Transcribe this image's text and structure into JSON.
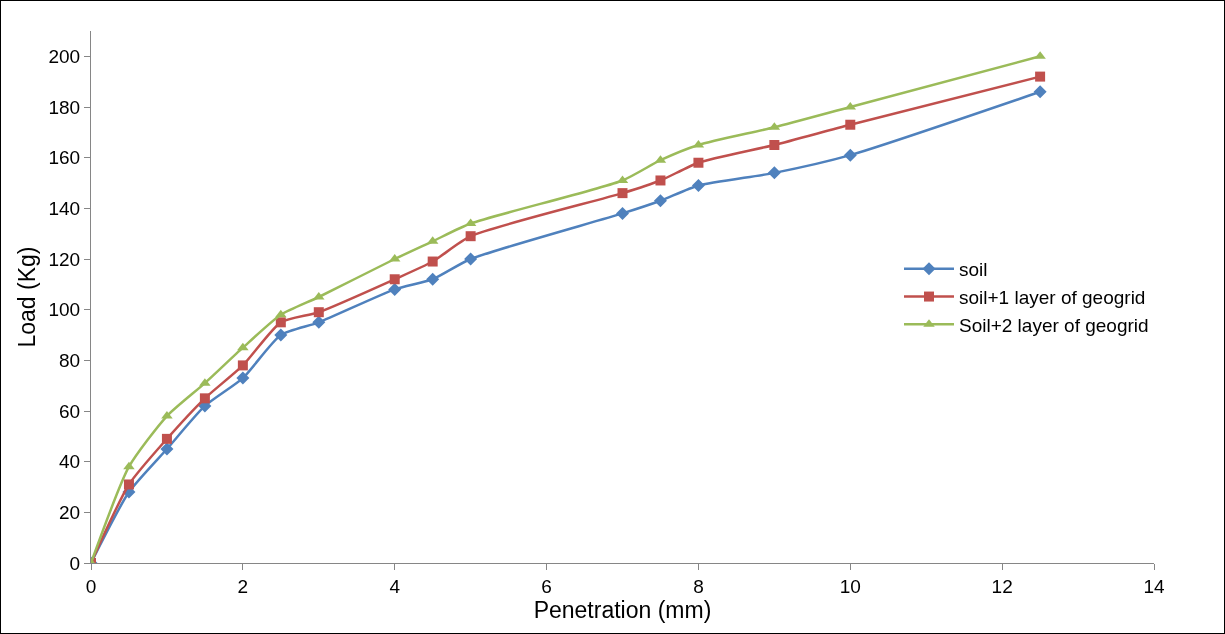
{
  "chart_data": {
    "type": "line",
    "xlabel": "Penetration (mm)",
    "ylabel": "Load (Kg)",
    "x": [
      0,
      0.5,
      1,
      1.5,
      2,
      2.5,
      3,
      4,
      4.5,
      5,
      7,
      7.5,
      8,
      9,
      10,
      12.5
    ],
    "series": [
      {
        "name": "soil",
        "color": "#4f81bd",
        "marker": "diamond",
        "values": [
          0,
          28,
          45,
          62,
          73,
          90,
          95,
          108,
          112,
          120,
          138,
          143,
          149,
          154,
          161,
          186
        ]
      },
      {
        "name": "soil+1 layer of geogrid",
        "color": "#c0504d",
        "marker": "square",
        "values": [
          0,
          31,
          49,
          65,
          78,
          95,
          99,
          112,
          119,
          129,
          146,
          151,
          158,
          165,
          173,
          192
        ]
      },
      {
        "name": "Soil+2 layer of geogrid",
        "color": "#9bbb59",
        "marker": "triangle",
        "values": [
          0,
          38,
          58,
          71,
          85,
          98,
          105,
          120,
          127,
          134,
          151,
          159,
          165,
          172,
          180,
          200
        ]
      }
    ],
    "xlim": [
      0,
      14
    ],
    "xticks": [
      0,
      2,
      4,
      6,
      8,
      10,
      12,
      14
    ],
    "ylim": [
      0,
      210
    ],
    "yticks": [
      0,
      20,
      40,
      60,
      80,
      100,
      120,
      140,
      160,
      180,
      200
    ],
    "grid": false,
    "legend": "right",
    "line_style": "solid"
  }
}
